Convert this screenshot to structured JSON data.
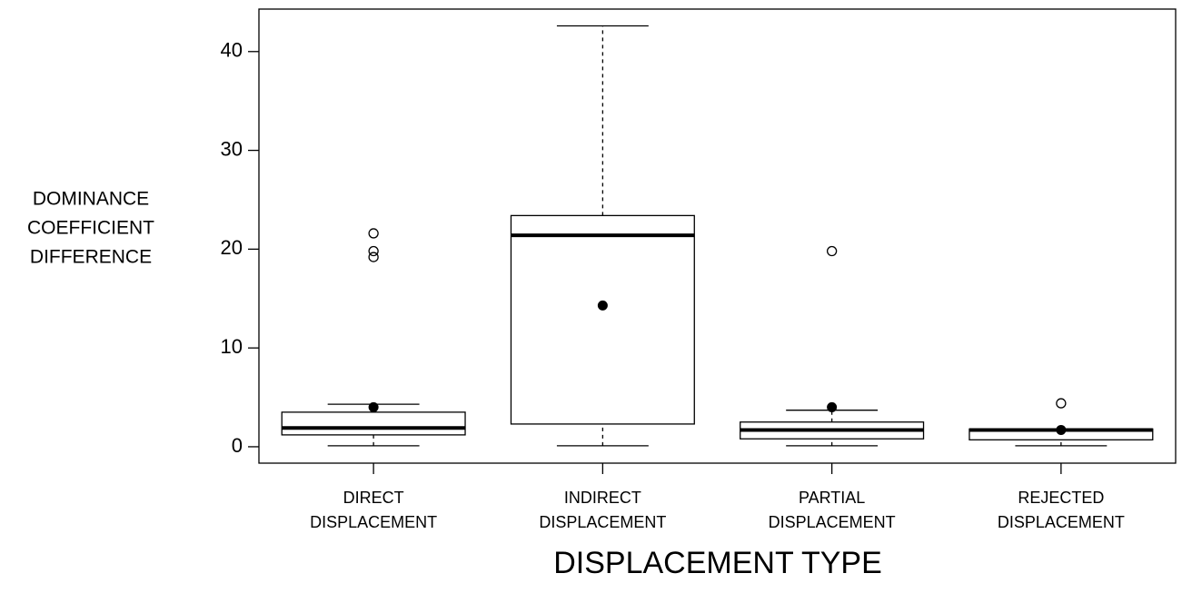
{
  "chart_data": {
    "type": "box",
    "ylabel": [
      "DOMINANCE",
      "COEFFICIENT",
      "DIFFERENCE"
    ],
    "xlabel": "DISPLACEMENT TYPE",
    "categories": [
      [
        "DIRECT",
        "DISPLACEMENT"
      ],
      [
        "INDIRECT",
        "DISPLACEMENT"
      ],
      [
        "PARTIAL",
        "DISPLACEMENT"
      ],
      [
        "REJECTED",
        "DISPLACEMENT"
      ]
    ],
    "boxes": [
      {
        "min": 0.1,
        "q1": 1.2,
        "median": 1.9,
        "q3": 3.5,
        "max": 4.3,
        "mean": 4.0,
        "outliers": [
          21.6,
          19.8,
          19.2
        ]
      },
      {
        "min": 0.1,
        "q1": 2.3,
        "median": 21.4,
        "q3": 23.4,
        "max": 42.6,
        "mean": 14.3,
        "outliers": []
      },
      {
        "min": 0.1,
        "q1": 0.8,
        "median": 1.7,
        "q3": 2.5,
        "max": 3.7,
        "mean": 4.0,
        "outliers": [
          19.8
        ]
      },
      {
        "min": 0.1,
        "q1": 0.7,
        "median": 1.7,
        "q3": 1.8,
        "max": 1.8,
        "mean": 1.7,
        "outliers": [
          4.4
        ]
      }
    ],
    "ylim": [
      -1.66,
      44.3
    ],
    "yticks": [
      0,
      10,
      20,
      30,
      40
    ],
    "grid": false
  }
}
